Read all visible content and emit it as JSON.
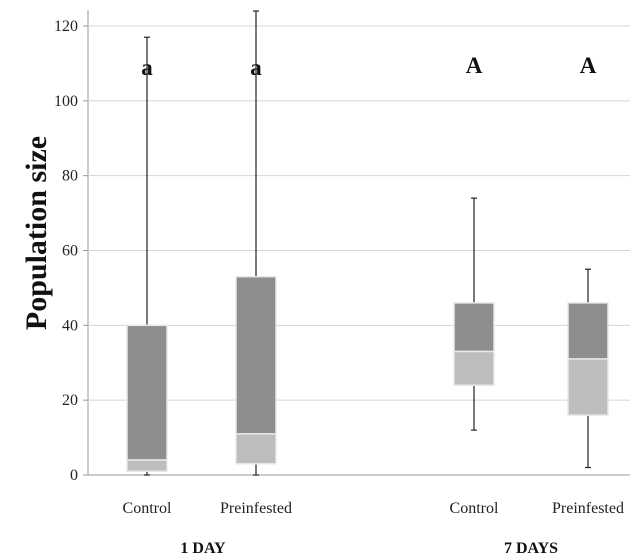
{
  "chart_data": {
    "type": "boxplot",
    "ylabel": "Population size",
    "ylim": [
      0,
      125
    ],
    "yticks": [
      0,
      20,
      40,
      60,
      80,
      100,
      120
    ],
    "grid": true,
    "groups": [
      {
        "label": "1 DAY",
        "boxes": [
          {
            "category": "Control",
            "min": 0,
            "q1": 1,
            "median": 4,
            "q3": 40,
            "max": 117,
            "annotation": "a"
          },
          {
            "category": "Preinfested",
            "min": 0,
            "q1": 3,
            "median": 11,
            "q3": 53,
            "max": 124,
            "annotation": "a"
          }
        ]
      },
      {
        "label": "7 DAYS",
        "boxes": [
          {
            "category": "Control",
            "min": 12,
            "q1": 24,
            "median": 33,
            "q3": 46,
            "max": 74,
            "annotation": "A"
          },
          {
            "category": "Preinfested",
            "min": 2,
            "q1": 16,
            "median": 31,
            "q3": 46,
            "max": 55,
            "annotation": "A"
          }
        ]
      }
    ],
    "colors": {
      "upper_box": "#8e8e8e",
      "lower_box": "#bdbdbd",
      "box_edge": "#e8e8e8",
      "gridline": "#d4d4d4",
      "axis": "#9a9a9a",
      "whisker": "#222222"
    }
  }
}
